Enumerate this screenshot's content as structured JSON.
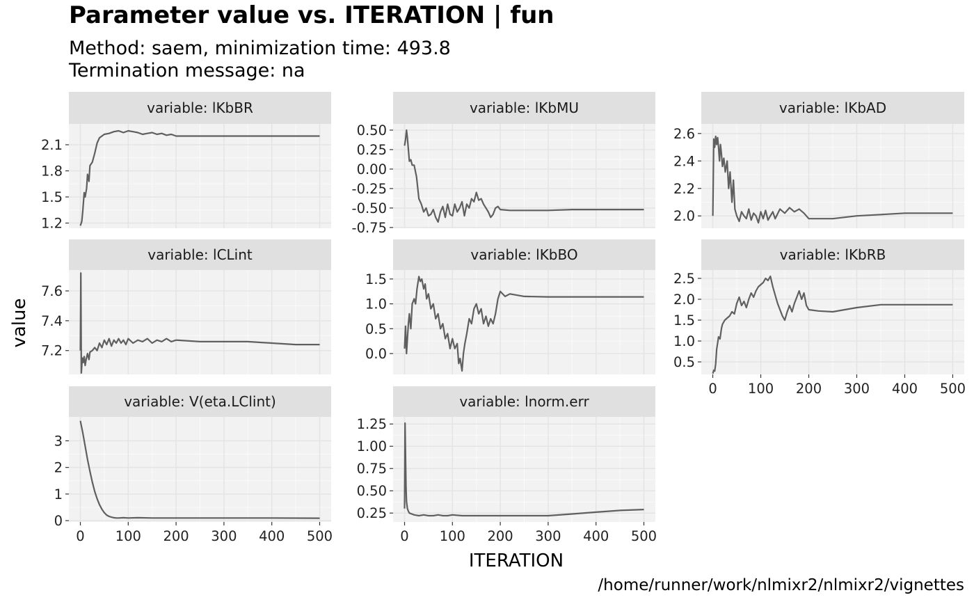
{
  "chart_data": {
    "type": "line",
    "title": "Parameter value vs. ITERATION | fun",
    "subtitle": [
      "Method: saem, minimization time: 493.8",
      "Termination message: na"
    ],
    "caption": "/home/runner/work/nlmixr2/nlmixr2/vignettes",
    "xlabel": "ITERATION",
    "ylabel": "value",
    "xlim": [
      -24,
      524
    ],
    "x_ticks": [
      0,
      100,
      200,
      300,
      400,
      500
    ],
    "x_tick_labels": [
      "0",
      "100",
      "200",
      "300",
      "400",
      "500"
    ],
    "grid": true,
    "line_color": "#5f5f5f",
    "panel_bg": "#f2f2f2",
    "strip_bg": "#e0e0e0",
    "panels": [
      {
        "strip": "variable: lKbBR",
        "ylim": [
          1.14,
          2.34
        ],
        "y_ticks": [
          1.2,
          1.5,
          1.8,
          2.1
        ],
        "y_tick_labels": [
          "1.2",
          "1.5",
          "1.8",
          "2.1"
        ],
        "x": [
          0,
          3,
          5,
          8,
          10,
          13,
          15,
          18,
          20,
          25,
          30,
          35,
          40,
          50,
          60,
          70,
          80,
          90,
          100,
          110,
          120,
          130,
          140,
          150,
          160,
          170,
          180,
          190,
          200,
          250,
          300,
          350,
          400,
          450,
          500
        ],
        "y": [
          1.17,
          1.22,
          1.34,
          1.55,
          1.5,
          1.6,
          1.76,
          1.68,
          1.86,
          1.9,
          2.0,
          2.12,
          2.18,
          2.22,
          2.23,
          2.25,
          2.26,
          2.24,
          2.26,
          2.25,
          2.24,
          2.22,
          2.23,
          2.24,
          2.22,
          2.23,
          2.21,
          2.22,
          2.2,
          2.2,
          2.2,
          2.2,
          2.2,
          2.2,
          2.2
        ]
      },
      {
        "strip": "variable: lKbMU",
        "ylim": [
          -0.76,
          0.58
        ],
        "y_ticks": [
          -0.75,
          -0.5,
          -0.25,
          0.0,
          0.25,
          0.5
        ],
        "y_tick_labels": [
          "-0.75",
          "-0.50",
          "-0.25",
          "0.00",
          "0.25",
          "0.50"
        ],
        "x": [
          0,
          2,
          4,
          6,
          8,
          10,
          13,
          16,
          20,
          25,
          30,
          35,
          40,
          45,
          50,
          55,
          60,
          65,
          70,
          75,
          80,
          85,
          90,
          95,
          100,
          105,
          110,
          115,
          120,
          125,
          130,
          135,
          140,
          145,
          150,
          155,
          160,
          165,
          170,
          175,
          180,
          185,
          190,
          195,
          200,
          220,
          250,
          300,
          350,
          400,
          450,
          500
        ],
        "y": [
          0.3,
          0.38,
          0.5,
          0.4,
          0.25,
          0.1,
          0.12,
          0.05,
          0.05,
          -0.1,
          -0.38,
          -0.45,
          -0.55,
          -0.5,
          -0.6,
          -0.58,
          -0.52,
          -0.62,
          -0.68,
          -0.55,
          -0.48,
          -0.62,
          -0.45,
          -0.58,
          -0.6,
          -0.45,
          -0.55,
          -0.5,
          -0.42,
          -0.6,
          -0.45,
          -0.5,
          -0.38,
          -0.42,
          -0.3,
          -0.4,
          -0.38,
          -0.45,
          -0.5,
          -0.55,
          -0.62,
          -0.58,
          -0.5,
          -0.48,
          -0.52,
          -0.53,
          -0.53,
          -0.53,
          -0.52,
          -0.52,
          -0.52,
          -0.52
        ]
      },
      {
        "strip": "variable: lKbAD",
        "ylim": [
          1.91,
          2.67
        ],
        "y_ticks": [
          2.0,
          2.2,
          2.4,
          2.6
        ],
        "y_tick_labels": [
          "2.0",
          "2.2",
          "2.4",
          "2.6"
        ],
        "x": [
          0,
          2,
          4,
          6,
          8,
          10,
          12,
          14,
          16,
          18,
          20,
          23,
          26,
          30,
          33,
          36,
          40,
          43,
          46,
          50,
          55,
          60,
          65,
          70,
          75,
          80,
          85,
          90,
          95,
          100,
          105,
          110,
          115,
          120,
          125,
          130,
          140,
          150,
          160,
          170,
          180,
          190,
          200,
          250,
          300,
          350,
          400,
          450,
          500
        ],
        "y": [
          2.0,
          2.56,
          2.5,
          2.58,
          2.52,
          2.57,
          2.5,
          2.4,
          2.52,
          2.45,
          2.36,
          2.42,
          2.32,
          2.4,
          2.2,
          2.32,
          2.1,
          2.26,
          2.05,
          2.0,
          1.96,
          2.03,
          2.0,
          1.98,
          2.05,
          1.97,
          2.02,
          2.0,
          1.95,
          2.03,
          1.98,
          2.04,
          1.97,
          2.0,
          2.03,
          1.98,
          2.05,
          2.02,
          2.06,
          2.03,
          2.05,
          2.02,
          1.98,
          1.98,
          2.0,
          2.01,
          2.02,
          2.02,
          2.02
        ]
      },
      {
        "strip": "variable: lCLint",
        "ylim": [
          7.04,
          7.74
        ],
        "y_ticks": [
          7.2,
          7.4,
          7.6
        ],
        "y_tick_labels": [
          "7.2",
          "7.4",
          "7.6"
        ],
        "x": [
          0,
          1,
          2,
          4,
          6,
          8,
          10,
          12,
          15,
          18,
          20,
          25,
          30,
          35,
          40,
          45,
          50,
          55,
          60,
          65,
          70,
          75,
          80,
          85,
          90,
          95,
          100,
          110,
          120,
          130,
          140,
          150,
          160,
          170,
          180,
          190,
          200,
          250,
          300,
          350,
          400,
          450,
          500
        ],
        "y": [
          7.2,
          7.72,
          7.05,
          7.15,
          7.12,
          7.16,
          7.1,
          7.14,
          7.18,
          7.14,
          7.19,
          7.2,
          7.22,
          7.2,
          7.25,
          7.22,
          7.27,
          7.24,
          7.28,
          7.23,
          7.27,
          7.25,
          7.28,
          7.25,
          7.27,
          7.24,
          7.28,
          7.25,
          7.27,
          7.26,
          7.28,
          7.25,
          7.27,
          7.26,
          7.28,
          7.26,
          7.27,
          7.26,
          7.26,
          7.26,
          7.25,
          7.24,
          7.24
        ]
      },
      {
        "strip": "variable: lKbBO",
        "ylim": [
          -0.42,
          1.68
        ],
        "y_ticks": [
          0.0,
          0.5,
          1.0,
          1.5
        ],
        "y_tick_labels": [
          "0.0",
          "0.5",
          "1.0",
          "1.5"
        ],
        "x": [
          0,
          2,
          4,
          6,
          8,
          10,
          13,
          16,
          20,
          23,
          26,
          30,
          33,
          36,
          40,
          43,
          46,
          50,
          55,
          60,
          65,
          70,
          75,
          80,
          85,
          90,
          95,
          100,
          105,
          110,
          113,
          116,
          120,
          123,
          126,
          130,
          135,
          140,
          145,
          150,
          155,
          160,
          165,
          170,
          175,
          180,
          185,
          190,
          195,
          200,
          210,
          220,
          250,
          300,
          350,
          400,
          450,
          500
        ],
        "y": [
          0.1,
          0.55,
          0.0,
          0.3,
          0.6,
          0.8,
          0.5,
          1.0,
          1.1,
          1.0,
          1.3,
          1.55,
          1.45,
          1.5,
          1.3,
          1.4,
          1.1,
          1.2,
          0.9,
          1.0,
          0.7,
          0.8,
          0.5,
          0.6,
          0.3,
          0.4,
          0.1,
          0.3,
          0.1,
          0.2,
          -0.2,
          -0.1,
          -0.35,
          0.0,
          0.2,
          0.4,
          0.7,
          0.6,
          0.9,
          1.0,
          0.8,
          0.9,
          0.6,
          0.75,
          0.55,
          0.7,
          0.6,
          0.8,
          1.1,
          1.25,
          1.15,
          1.2,
          1.15,
          1.14,
          1.14,
          1.14,
          1.14,
          1.14
        ]
      },
      {
        "strip": "variable: lKbRB",
        "ylim": [
          0.2,
          2.7
        ],
        "y_ticks": [
          0.5,
          1.0,
          1.5,
          2.0,
          2.5
        ],
        "y_tick_labels": [
          "0.5",
          "1.0",
          "1.5",
          "2.0",
          "2.5"
        ],
        "x": [
          0,
          2,
          4,
          6,
          8,
          10,
          12,
          15,
          18,
          20,
          25,
          30,
          35,
          40,
          45,
          50,
          55,
          60,
          65,
          70,
          75,
          80,
          85,
          90,
          95,
          100,
          105,
          110,
          115,
          120,
          125,
          130,
          135,
          140,
          145,
          150,
          155,
          160,
          165,
          170,
          175,
          180,
          185,
          190,
          195,
          200,
          220,
          250,
          300,
          350,
          400,
          450,
          500
        ],
        "y": [
          0.22,
          0.3,
          0.28,
          0.45,
          0.8,
          0.95,
          1.1,
          1.05,
          1.3,
          1.4,
          1.5,
          1.55,
          1.6,
          1.7,
          1.65,
          1.9,
          2.05,
          1.85,
          1.95,
          1.8,
          2.0,
          2.15,
          2.05,
          2.2,
          2.3,
          2.35,
          2.4,
          2.5,
          2.45,
          2.55,
          2.3,
          2.1,
          1.9,
          1.75,
          1.6,
          1.5,
          1.7,
          1.85,
          1.7,
          1.9,
          2.05,
          2.2,
          2.0,
          2.15,
          1.85,
          1.75,
          1.72,
          1.7,
          1.8,
          1.87,
          1.87,
          1.87,
          1.87
        ]
      },
      {
        "strip": "variable: V(eta.LClint)",
        "ylim": [
          -0.05,
          3.9
        ],
        "y_ticks": [
          0,
          1,
          2,
          3
        ],
        "y_tick_labels": [
          "0",
          "1",
          "2",
          "3"
        ],
        "x": [
          0,
          5,
          10,
          15,
          20,
          25,
          30,
          35,
          40,
          45,
          50,
          55,
          60,
          65,
          70,
          75,
          80,
          90,
          100,
          120,
          150,
          200,
          300,
          400,
          500
        ],
        "y": [
          3.75,
          3.3,
          2.8,
          2.3,
          1.85,
          1.45,
          1.1,
          0.82,
          0.6,
          0.43,
          0.3,
          0.21,
          0.16,
          0.13,
          0.11,
          0.1,
          0.1,
          0.11,
          0.1,
          0.11,
          0.1,
          0.1,
          0.1,
          0.1,
          0.09
        ]
      },
      {
        "strip": "variable: lnorm.err",
        "ylim": [
          0.15,
          1.33
        ],
        "y_ticks": [
          0.25,
          0.5,
          0.75,
          1.0,
          1.25
        ],
        "y_tick_labels": [
          "0.25",
          "0.50",
          "0.75",
          "1.00",
          "1.25"
        ],
        "x": [
          0,
          1,
          2,
          3,
          4,
          6,
          8,
          10,
          15,
          20,
          30,
          40,
          50,
          60,
          70,
          80,
          90,
          100,
          120,
          150,
          200,
          250,
          300,
          350,
          400,
          450,
          500
        ],
        "y": [
          0.3,
          1.26,
          0.9,
          0.55,
          0.38,
          0.3,
          0.27,
          0.25,
          0.24,
          0.23,
          0.22,
          0.23,
          0.22,
          0.22,
          0.23,
          0.22,
          0.22,
          0.23,
          0.22,
          0.22,
          0.22,
          0.22,
          0.22,
          0.24,
          0.26,
          0.28,
          0.29
        ]
      }
    ]
  }
}
